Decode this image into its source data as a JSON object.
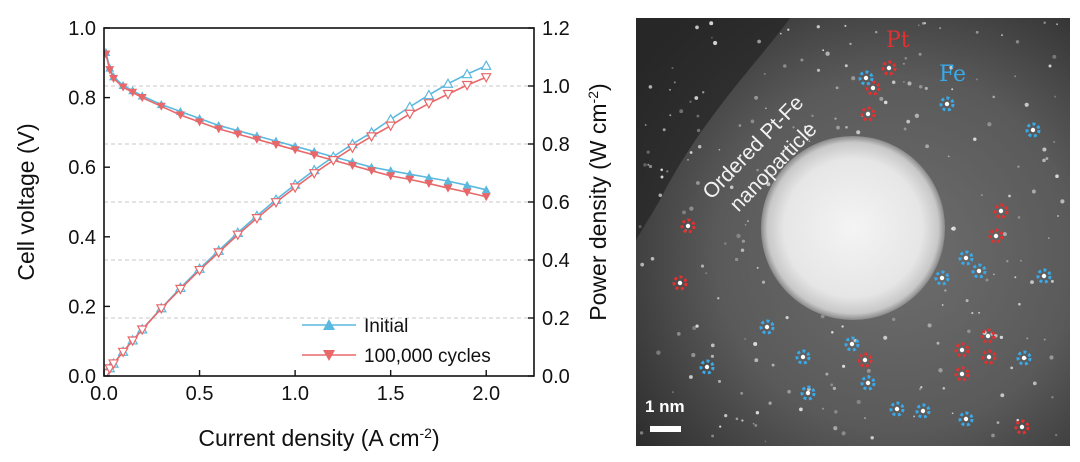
{
  "chart_data": {
    "type": "line",
    "xlabel": "Current density (A cm",
    "xlabel_sup": "-2",
    "xlabel_end": ")",
    "ylabel_left": "Cell voltage (V)",
    "ylabel_right": "Power density (W cm",
    "ylabel_right_sup": "-2",
    "ylabel_right_end": ")",
    "xlim": [
      0,
      2.25
    ],
    "ylim_left": [
      0,
      1.0
    ],
    "ylim_right": [
      0,
      1.2
    ],
    "x_ticks": [
      "0.0",
      "0.5",
      "1.0",
      "1.5",
      "2.0"
    ],
    "y_left_ticks": [
      "0.0",
      "0.2",
      "0.4",
      "0.6",
      "0.8",
      "1.0"
    ],
    "y_right_ticks": [
      "0.0",
      "0.2",
      "0.4",
      "0.6",
      "0.8",
      "1.0",
      "1.2"
    ],
    "grid": "horizontal dashed",
    "legend_position": "bottom-right",
    "x": [
      0.01,
      0.03,
      0.05,
      0.1,
      0.15,
      0.2,
      0.3,
      0.4,
      0.5,
      0.6,
      0.7,
      0.8,
      0.9,
      1.0,
      1.1,
      1.2,
      1.3,
      1.4,
      1.5,
      1.6,
      1.7,
      1.8,
      1.9,
      2.0
    ],
    "series": [
      {
        "name": "Initial",
        "color": "#5bb8df",
        "marker": "triangle-up",
        "voltage": [
          0.93,
          0.885,
          0.86,
          0.835,
          0.82,
          0.805,
          0.78,
          0.76,
          0.74,
          0.72,
          0.705,
          0.69,
          0.675,
          0.66,
          0.645,
          0.63,
          0.615,
          0.6,
          0.59,
          0.58,
          0.57,
          0.56,
          0.548,
          0.535
        ],
        "power": [
          0.009,
          0.027,
          0.043,
          0.084,
          0.123,
          0.161,
          0.234,
          0.304,
          0.37,
          0.432,
          0.494,
          0.552,
          0.608,
          0.66,
          0.71,
          0.756,
          0.8,
          0.84,
          0.885,
          0.928,
          0.969,
          1.008,
          1.041,
          1.07
        ]
      },
      {
        "name": "100,000 cycles",
        "color": "#e8686a",
        "marker": "triangle-down",
        "voltage": [
          0.925,
          0.88,
          0.855,
          0.83,
          0.815,
          0.8,
          0.775,
          0.75,
          0.73,
          0.71,
          0.695,
          0.68,
          0.665,
          0.65,
          0.635,
          0.62,
          0.605,
          0.59,
          0.575,
          0.565,
          0.553,
          0.54,
          0.528,
          0.515
        ],
        "power": [
          0.009,
          0.026,
          0.043,
          0.083,
          0.122,
          0.16,
          0.233,
          0.3,
          0.365,
          0.426,
          0.487,
          0.544,
          0.599,
          0.65,
          0.699,
          0.744,
          0.787,
          0.826,
          0.863,
          0.904,
          0.94,
          0.972,
          1.003,
          1.03
        ]
      }
    ]
  },
  "micrograph": {
    "label_pt": "Pt",
    "label_fe": "Fe",
    "label_particle_line1": "Ordered Pt-Fe",
    "label_particle_line2": "nanoparticle",
    "scale_bar": "1 nm",
    "color_pt": "#e53030",
    "color_fe": "#39a9e8"
  }
}
